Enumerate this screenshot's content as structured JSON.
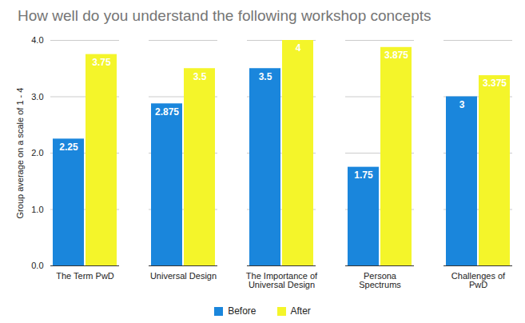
{
  "chart_data": {
    "type": "bar",
    "title": "How well do you understand the following workshop concepts",
    "y_label": "Group average on a scale of 1 - 4",
    "categories": [
      "The Term PwD",
      "Universal Design",
      "The Importance of Universal Design",
      "Persona Spectrums",
      "Challenges of PwD"
    ],
    "series": [
      {
        "name": "Before",
        "color": "#1a86dc",
        "values": [
          2.25,
          2.875,
          3.5,
          1.75,
          3
        ]
      },
      {
        "name": "After",
        "color": "#f4f52a",
        "values": [
          3.75,
          3.5,
          4,
          3.875,
          3.375
        ]
      }
    ],
    "ylim": [
      0,
      4
    ],
    "yticks": [
      0,
      1,
      2,
      3,
      4
    ],
    "grid": true,
    "legend": "bottom",
    "data_labels": true
  }
}
